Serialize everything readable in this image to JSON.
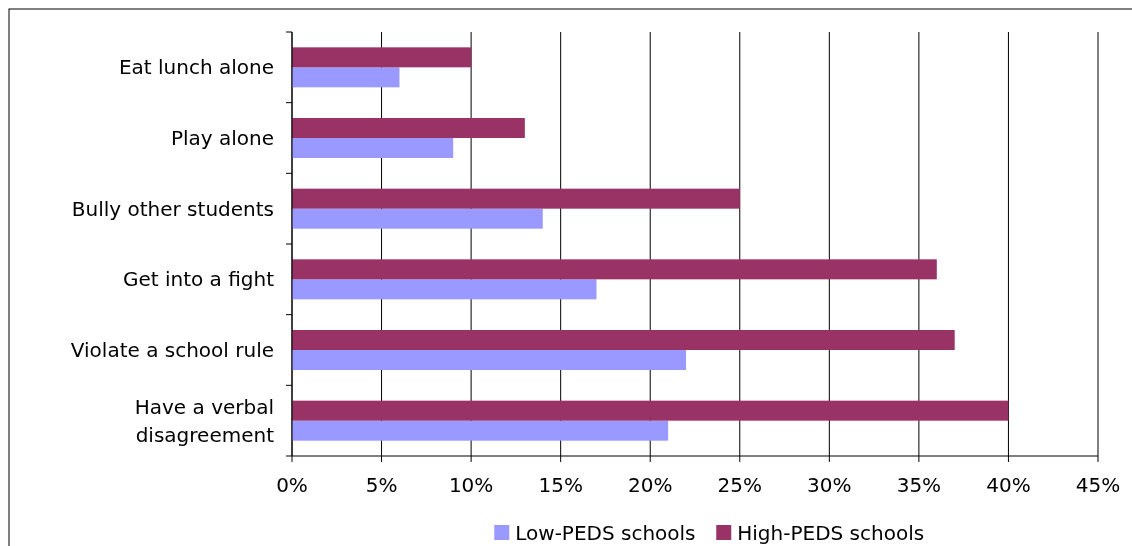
{
  "chart_data": {
    "type": "bar",
    "orientation": "horizontal",
    "categories": [
      "Eat lunch alone",
      "Play alone",
      "Bully other students",
      "Get into a fight",
      "Violate a school rule",
      "Have a verbal disagreement"
    ],
    "series": [
      {
        "name": "Low-PEDS schools",
        "color": "#9999ff",
        "values": [
          6,
          9,
          14,
          17,
          22,
          21
        ]
      },
      {
        "name": "High-PEDS schools",
        "color": "#993366",
        "values": [
          10,
          13,
          25,
          36,
          37,
          40
        ]
      }
    ],
    "xlim": [
      0,
      45
    ],
    "xticks": [
      {
        "value": 0,
        "label": "0%"
      },
      {
        "value": 5,
        "label": "5%"
      },
      {
        "value": 10,
        "label": "10%"
      },
      {
        "value": 15,
        "label": "15%"
      },
      {
        "value": 20,
        "label": "20%"
      },
      {
        "value": 25,
        "label": "25%"
      },
      {
        "value": 30,
        "label": "30%"
      },
      {
        "value": 35,
        "label": "35%"
      },
      {
        "value": 40,
        "label": "40%"
      },
      {
        "value": 45,
        "label": "45%"
      }
    ],
    "grid": "x",
    "legend": "bottom"
  }
}
